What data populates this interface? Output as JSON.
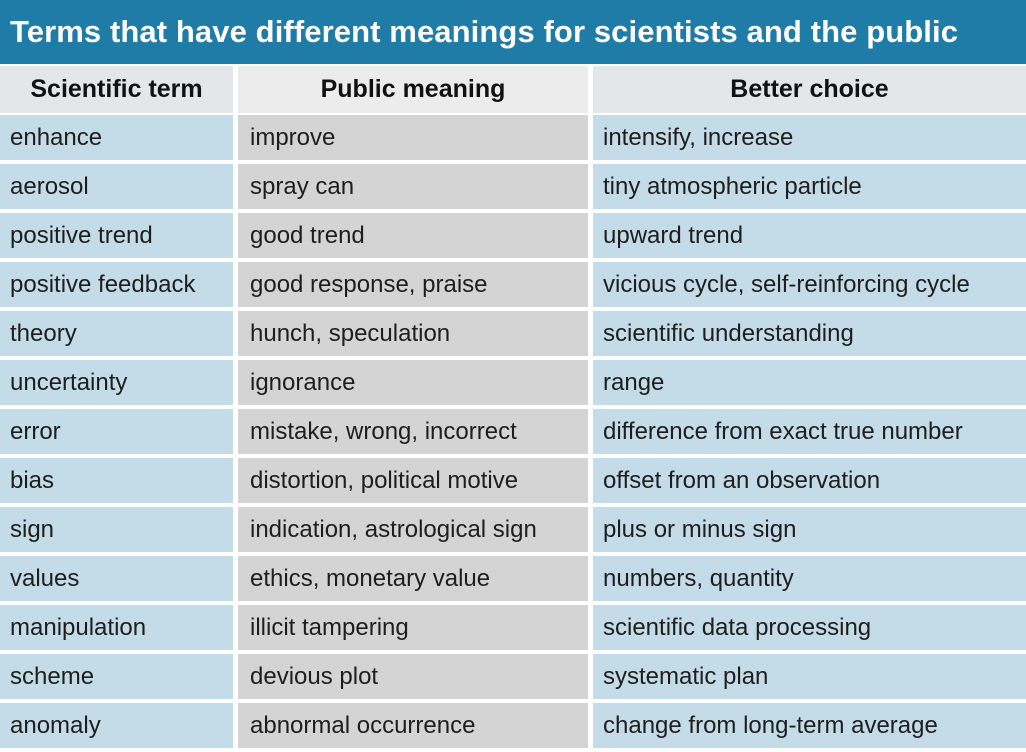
{
  "title": "Terms that have different meanings for scientists and the public",
  "colors": {
    "title_bg": "#1f7ca6",
    "header_bg": "#e3e7ea",
    "term_col_bg": "#c4dbe8",
    "public_col_bg": "#d4d4d4",
    "choice_col_bg": "#c4dbe8"
  },
  "headers": {
    "scientific_term": "Scientific term",
    "public_meaning": "Public meaning",
    "better_choice": "Better choice"
  },
  "rows": [
    {
      "term": "enhance",
      "public": "improve",
      "better": "intensify, increase"
    },
    {
      "term": "aerosol",
      "public": "spray can",
      "better": "tiny atmospheric particle"
    },
    {
      "term": "positive trend",
      "public": "good trend",
      "better": "upward trend"
    },
    {
      "term": "positive feedback",
      "public": "good response, praise",
      "better": "vicious cycle, self-reinforcing cycle"
    },
    {
      "term": "theory",
      "public": "hunch, speculation",
      "better": "scientific understanding"
    },
    {
      "term": "uncertainty",
      "public": "ignorance",
      "better": "range"
    },
    {
      "term": "error",
      "public": "mistake, wrong, incorrect",
      "better": "difference from exact true number"
    },
    {
      "term": "bias",
      "public": "distortion, political motive",
      "better": "offset from an observation"
    },
    {
      "term": "sign",
      "public": "indication, astrological sign",
      "better": "plus or minus sign"
    },
    {
      "term": "values",
      "public": "ethics, monetary value",
      "better": "numbers, quantity"
    },
    {
      "term": "manipulation",
      "public": "illicit tampering",
      "better": "scientific data processing"
    },
    {
      "term": "scheme",
      "public": "devious plot",
      "better": "systematic plan"
    },
    {
      "term": "anomaly",
      "public": "abnormal occurrence",
      "better": "change from long-term average"
    }
  ]
}
